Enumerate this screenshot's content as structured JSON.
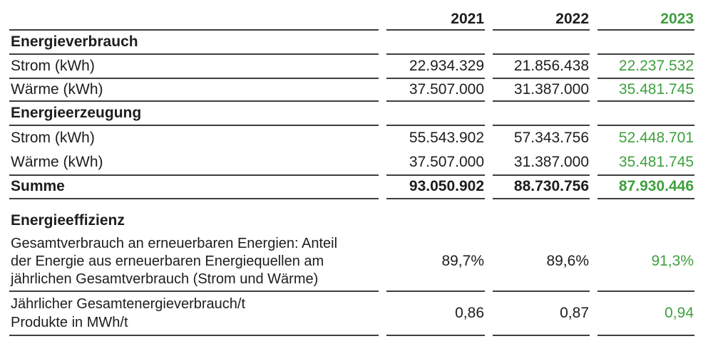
{
  "colors": {
    "text": "#1d1d1b",
    "accent_green": "#3e9f3e",
    "rule_line": "#3e3e3c",
    "background": "#ffffff"
  },
  "table": {
    "year_columns": [
      "2021",
      "2022",
      "2023"
    ],
    "rows": [
      {
        "type": "section",
        "label": "Energieverbrauch",
        "values": [
          "",
          "",
          ""
        ]
      },
      {
        "type": "data",
        "label": "Strom (kWh)",
        "values": [
          "22.934.329",
          "21.856.438",
          "22.237.532"
        ]
      },
      {
        "type": "data",
        "label": "Wärme (kWh)",
        "values": [
          "37.507.000",
          "31.387.000",
          "35.481.745"
        ]
      },
      {
        "type": "section",
        "label": "Energieerzeugung",
        "values": [
          "",
          "",
          ""
        ]
      },
      {
        "type": "data",
        "label": "Strom (kWh)",
        "values": [
          "55.543.902",
          "57.343.756",
          "52.448.701"
        ]
      },
      {
        "type": "data",
        "label": "Wärme (kWh)",
        "values": [
          "37.507.000",
          "31.387.000",
          "35.481.745"
        ]
      },
      {
        "type": "total",
        "label": "Summe",
        "values": [
          "93.050.902",
          "88.730.756",
          "87.930.446"
        ]
      }
    ],
    "efficiency": {
      "heading": "Energieeffizienz",
      "rows": [
        {
          "label": "Gesamtverbrauch an erneuerbaren Energien: Anteil der Energie aus erneuerbaren Energiequellen am jährlichen Gesamtverbrauch (Strom und Wärme)",
          "values": [
            "89,7%",
            "89,6%",
            "91,3%"
          ]
        },
        {
          "label": "Jährlicher Gesamtenergieverbrauch/t Produkte in MWh/t",
          "values": [
            "0,86",
            "0,87",
            "0,94"
          ]
        }
      ]
    }
  },
  "chart_data": {
    "type": "table",
    "columns": [
      "",
      "2021",
      "2022",
      "2023"
    ],
    "rows": [
      [
        "Energieverbrauch",
        null,
        null,
        null
      ],
      [
        "Strom (kWh)",
        22934329,
        21856438,
        22237532
      ],
      [
        "Wärme (kWh)",
        37507000,
        31387000,
        35481745
      ],
      [
        "Energieerzeugung",
        null,
        null,
        null
      ],
      [
        "Strom (kWh)",
        55543902,
        57343756,
        52448701
      ],
      [
        "Wärme (kWh)",
        37507000,
        31387000,
        35481745
      ],
      [
        "Summe",
        93050902,
        88730756,
        87930446
      ],
      [
        "Energieeffizienz",
        null,
        null,
        null
      ],
      [
        "Gesamtverbrauch an erneuerbaren Energien: Anteil der Energie aus erneuerbaren Energiequellen am jährlichen Gesamtverbrauch (Strom und Wärme)",
        "89,7%",
        "89,6%",
        "91,3%"
      ],
      [
        "Jährlicher Gesamtenergieverbrauch/t Produkte in MWh/t",
        "0,86",
        "0,87",
        "0,94"
      ]
    ],
    "notes": "2023 column rendered in green (#3e9f3e); section rows and Summe bold"
  }
}
